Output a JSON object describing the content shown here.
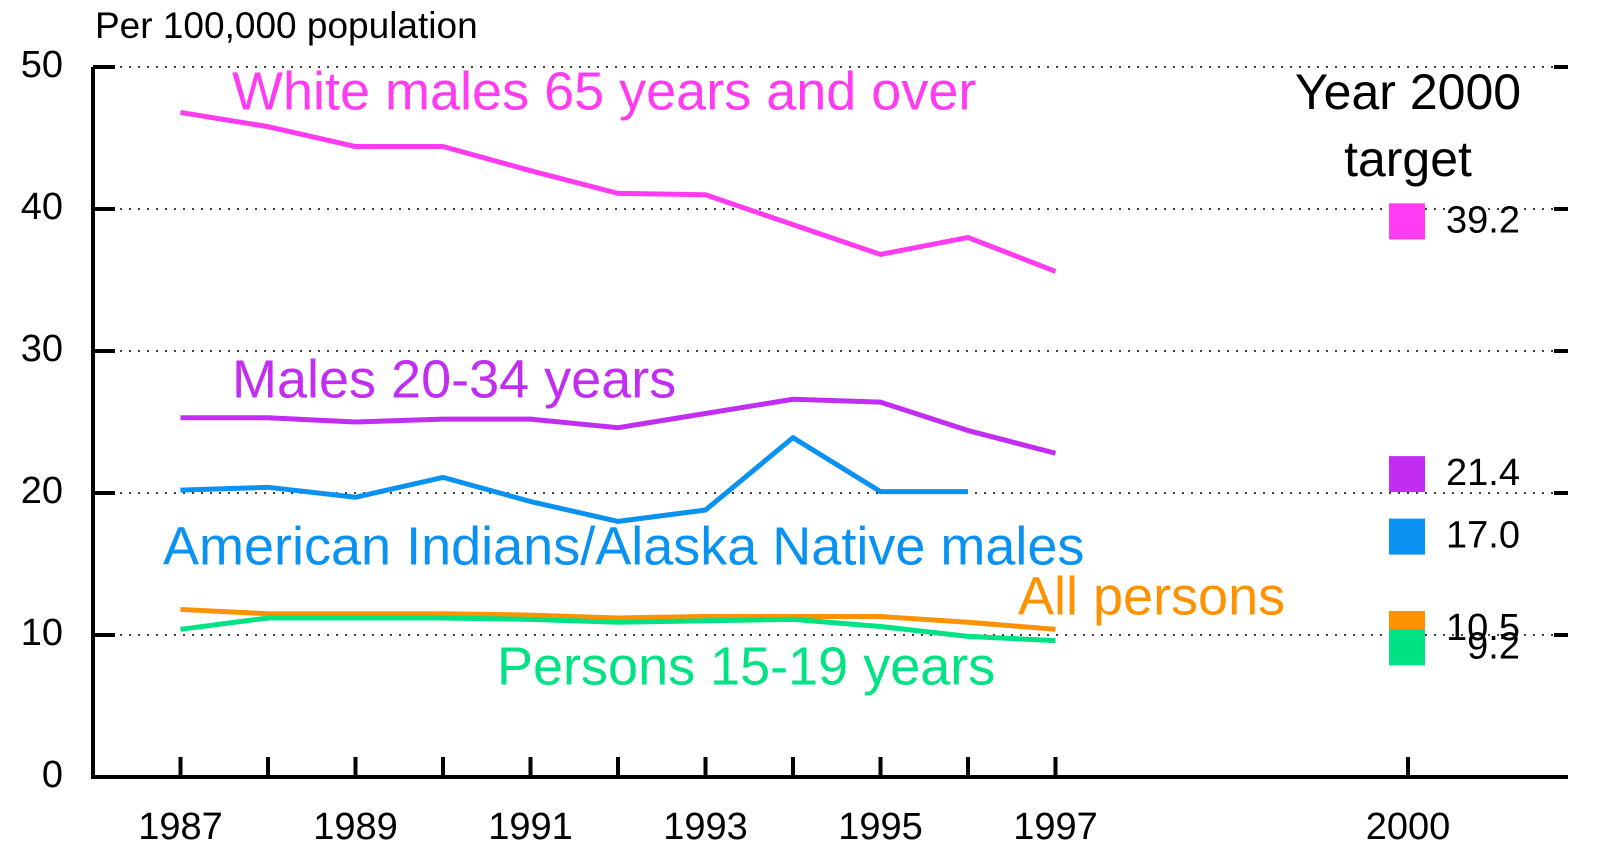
{
  "chart_data": {
    "type": "line",
    "y_axis_label": "Per 100,000 population",
    "x": [
      1987,
      1988,
      1989,
      1990,
      1991,
      1992,
      1993,
      1994,
      1995,
      1996,
      1997
    ],
    "series": [
      {
        "name": "White males 65 years and over",
        "color": "#ff3cf2",
        "values": [
          46.8,
          45.8,
          44.4,
          44.4,
          42.7,
          41.1,
          41.0,
          38.9,
          36.8,
          38.0,
          35.6
        ]
      },
      {
        "name": "Males 20-34 years",
        "color": "#c12ef2",
        "values": [
          25.3,
          25.3,
          25.0,
          25.2,
          25.2,
          24.6,
          25.6,
          26.6,
          26.4,
          24.4,
          22.8
        ]
      },
      {
        "name": "American Indians/Alaska Native males",
        "color": "#0a92f2",
        "values": [
          20.2,
          20.4,
          19.7,
          21.1,
          19.4,
          18.0,
          18.8,
          23.9,
          20.1,
          20.1,
          null
        ]
      },
      {
        "name": "All persons",
        "color": "#ff9200",
        "values": [
          11.8,
          11.5,
          11.5,
          11.5,
          11.4,
          11.2,
          11.3,
          11.3,
          11.3,
          10.9,
          10.4
        ]
      },
      {
        "name": "Persons 15-19 years",
        "color": "#00e284",
        "values": [
          10.4,
          11.2,
          11.2,
          11.2,
          11.1,
          10.9,
          11.0,
          11.1,
          10.6,
          9.9,
          9.6
        ]
      }
    ],
    "target_title": [
      "Year 2000",
      "target"
    ],
    "target_x": 2000,
    "target_values": [
      39.2,
      21.4,
      17,
      10.5,
      9.2
    ],
    "target_value_labels": [
      "39.2",
      "21.4",
      "17.0",
      "10.5",
      "9.2"
    ],
    "xlim": [
      1986,
      2001.8
    ],
    "xticks": [
      1987,
      1989,
      1991,
      1993,
      1995,
      1997,
      2000
    ],
    "minor_xticks": [
      1988,
      1990,
      1992,
      1994,
      1996
    ],
    "ylim": [
      0,
      50
    ],
    "yticks": [
      0,
      10,
      20,
      30,
      40,
      50
    ],
    "grid": true
  }
}
